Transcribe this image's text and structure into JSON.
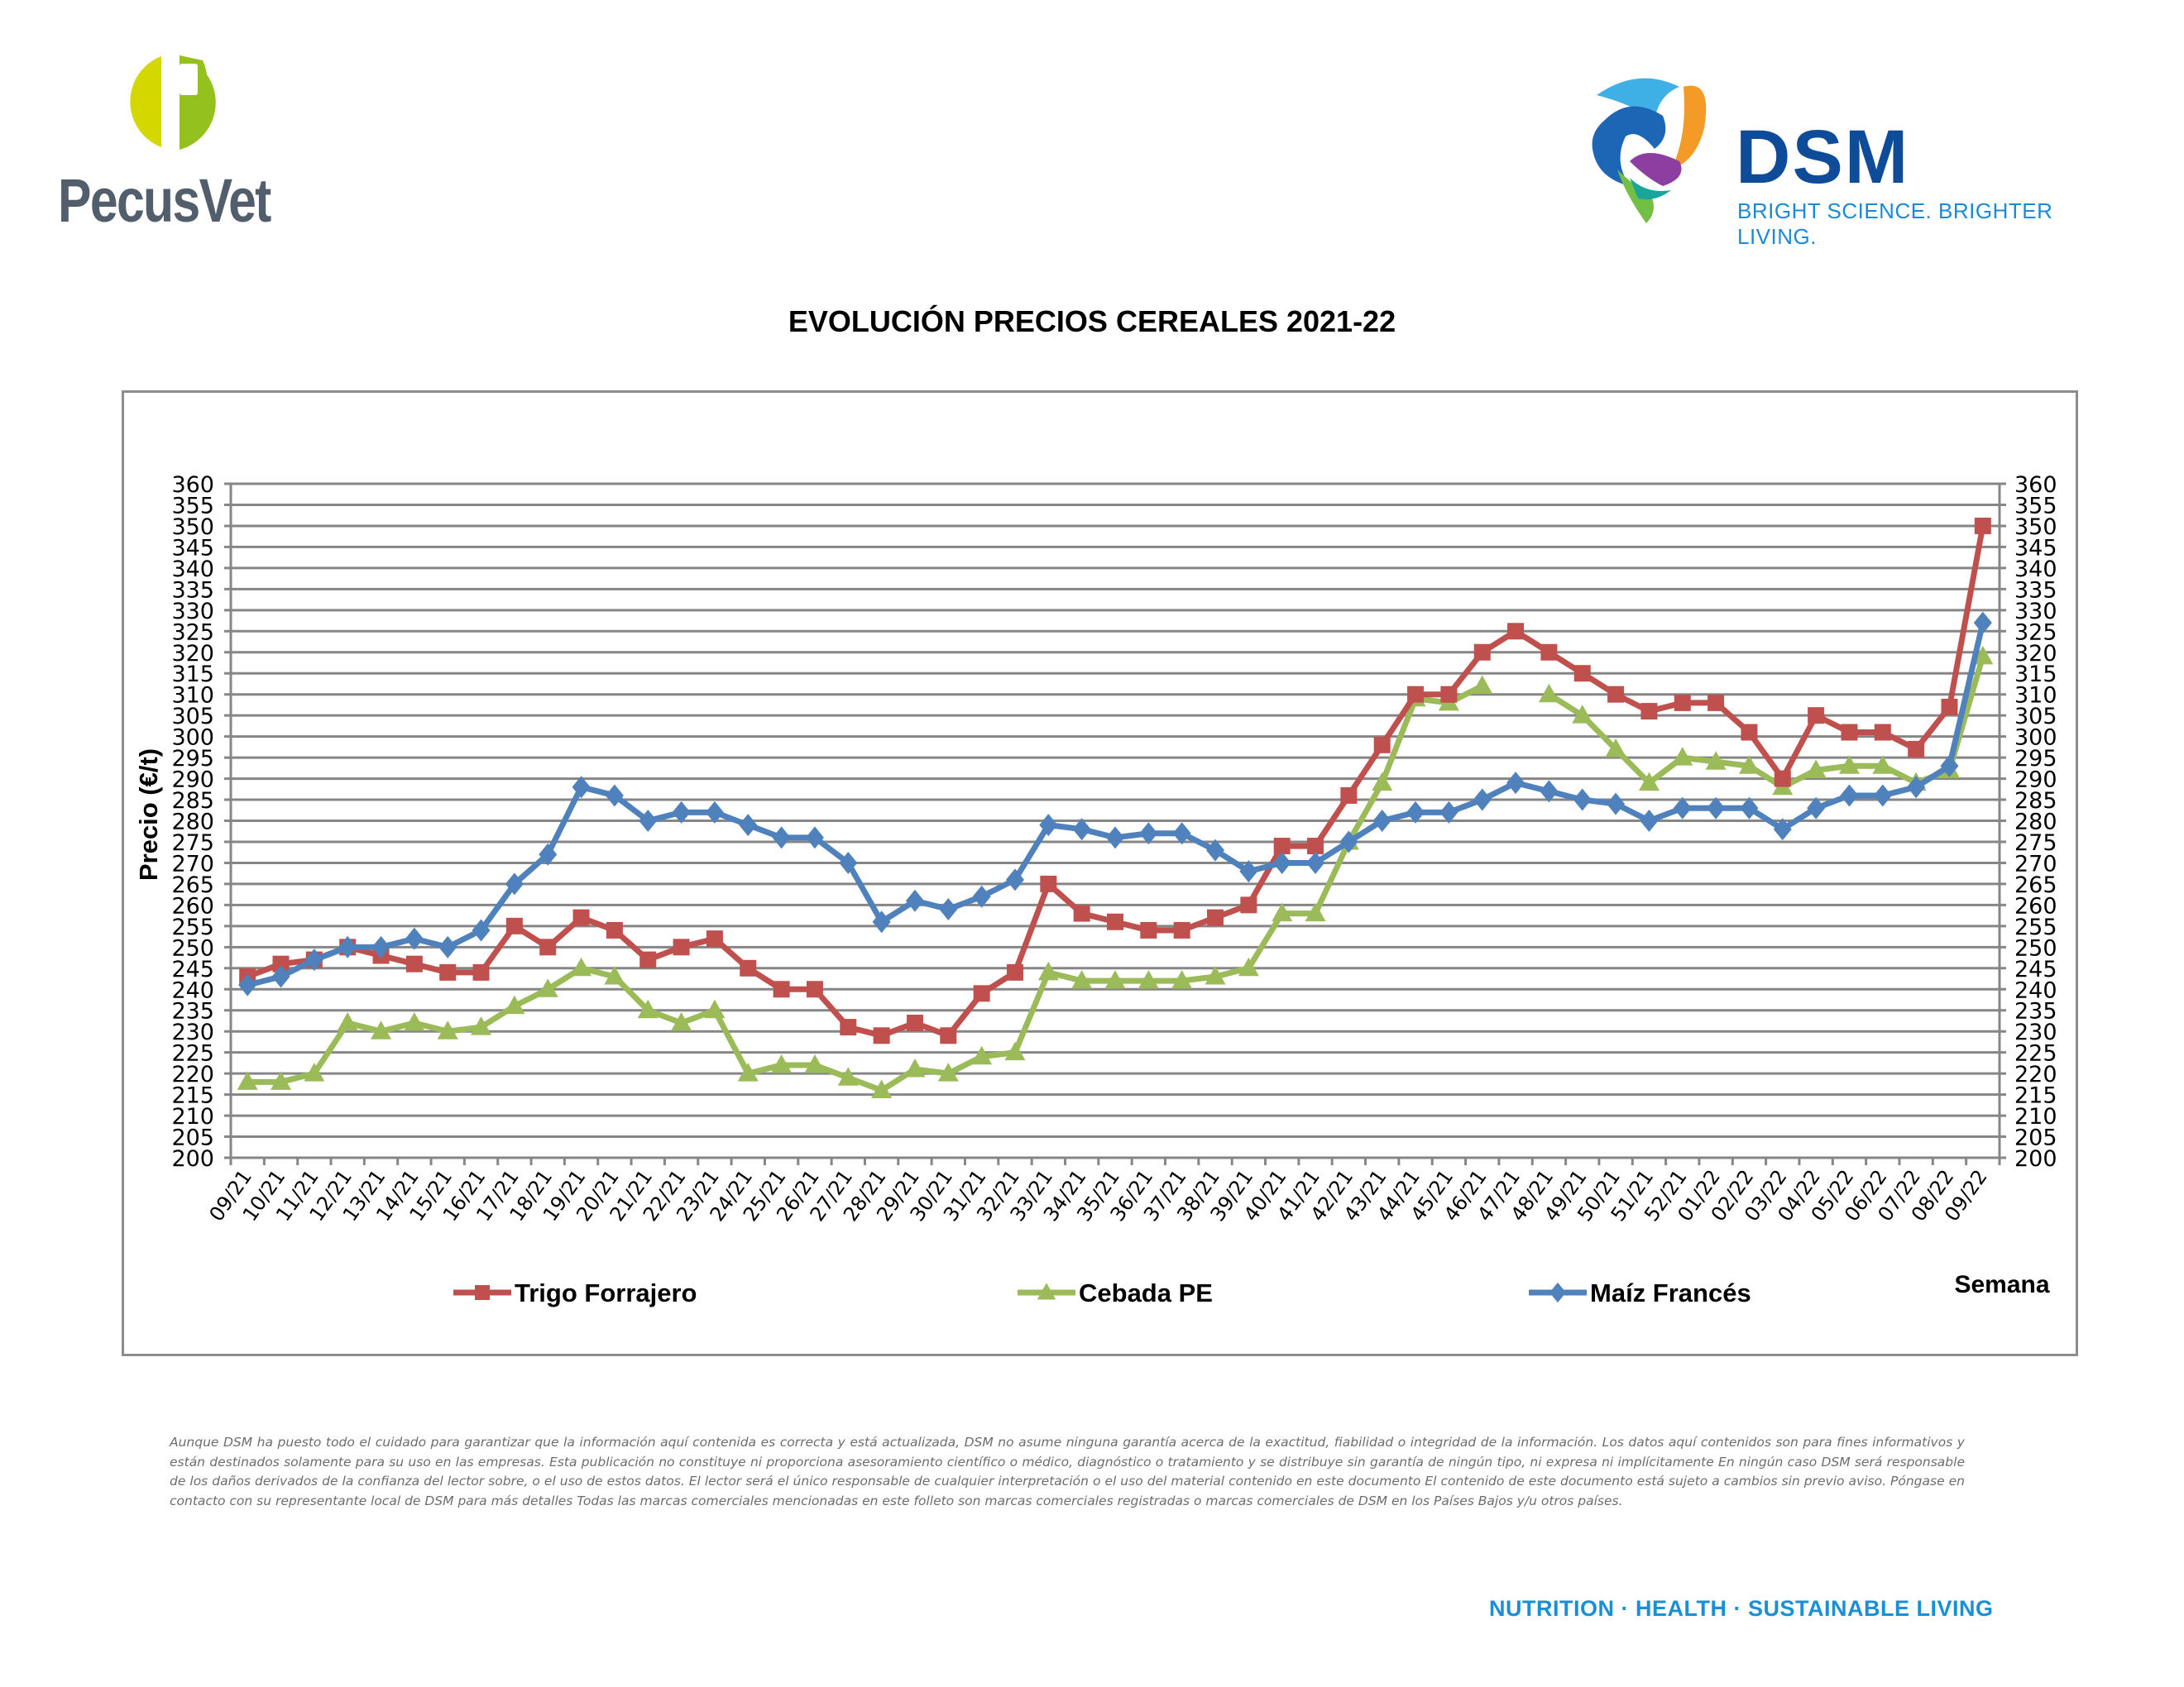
{
  "header": {
    "left_logo": {
      "name": "PecusVet",
      "letter": "P"
    },
    "right_logo": {
      "name": "DSM",
      "tagline": "BRIGHT SCIENCE. BRIGHTER LIVING."
    }
  },
  "chart_data": {
    "type": "line",
    "title": "EVOLUCIÓN PRECIOS CEREALES 2021-22",
    "xlabel": "Semana",
    "ylabel": "Precio (€/t)",
    "ylim": [
      200,
      360
    ],
    "ytick_step": 5,
    "grid": true,
    "legend_position": "bottom",
    "secondary_y_axis_mirrored": true,
    "categories": [
      "09/21",
      "10/21",
      "11/21",
      "12/21",
      "13/21",
      "14/21",
      "15/21",
      "16/21",
      "17/21",
      "18/21",
      "19/21",
      "20/21",
      "21/21",
      "22/21",
      "23/21",
      "24/21",
      "25/21",
      "26/21",
      "27/21",
      "28/21",
      "29/21",
      "30/21",
      "31/21",
      "32/21",
      "33/21",
      "34/21",
      "35/21",
      "36/21",
      "37/21",
      "38/21",
      "39/21",
      "40/21",
      "41/21",
      "42/21",
      "43/21",
      "44/21",
      "45/21",
      "46/21",
      "47/21",
      "48/21",
      "49/21",
      "50/21",
      "51/21",
      "52/21",
      "01/22",
      "02/22",
      "03/22",
      "04/22",
      "05/22",
      "06/22",
      "07/22",
      "08/22",
      "09/22"
    ],
    "series": [
      {
        "name": "Trigo Forrajero",
        "color": "#c0504d",
        "marker": "square",
        "values": [
          243,
          246,
          247,
          250,
          248,
          246,
          244,
          244,
          255,
          250,
          257,
          254,
          247,
          250,
          252,
          245,
          240,
          240,
          231,
          229,
          232,
          229,
          239,
          244,
          265,
          258,
          256,
          254,
          254,
          257,
          260,
          274,
          274,
          286,
          298,
          310,
          310,
          320,
          325,
          320,
          315,
          310,
          306,
          308,
          308,
          301,
          290,
          305,
          301,
          301,
          297,
          307,
          350
        ]
      },
      {
        "name": "Cebada PE",
        "color": "#9bbb59",
        "marker": "triangle",
        "values": [
          218,
          218,
          220,
          232,
          230,
          232,
          230,
          231,
          236,
          240,
          245,
          243,
          235,
          232,
          235,
          220,
          222,
          222,
          219,
          216,
          221,
          220,
          224,
          225,
          244,
          242,
          242,
          242,
          242,
          243,
          245,
          258,
          258,
          275,
          289,
          309,
          308,
          312,
          null,
          310,
          305,
          297,
          289,
          295,
          294,
          293,
          288,
          292,
          293,
          293,
          289,
          292,
          319
        ]
      },
      {
        "name": "Maíz Francés",
        "color": "#4f81bd",
        "marker": "diamond",
        "values": [
          241,
          243,
          247,
          250,
          250,
          252,
          250,
          254,
          265,
          272,
          288,
          286,
          280,
          282,
          282,
          279,
          276,
          276,
          270,
          256,
          261,
          259,
          262,
          266,
          279,
          278,
          276,
          277,
          277,
          273,
          268,
          270,
          270,
          275,
          280,
          282,
          282,
          285,
          289,
          287,
          285,
          284,
          280,
          283,
          283,
          283,
          278,
          283,
          286,
          286,
          288,
          293,
          327
        ]
      }
    ]
  },
  "disclaimer": "Aunque DSM ha puesto todo el cuidado para garantizar que la información aquí contenida es correcta y está actualizada, DSM no asume ninguna garantía acerca de la exactitud, fiabilidad o integridad de la información. Los datos aquí contenidos son para fines informativos y están destinados solamente para su uso en las empresas. Esta publicación no constituye ni proporciona asesoramiento científico o médico, diagnóstico o tratamiento y se distribuye sin garantía de ningún tipo, ni expresa ni implícitamente En ningún caso DSM será responsable de los daños derivados de la confianza del lector sobre, o el uso de estos datos. El lector será el único responsable de cualquier interpretación o el uso del material contenido en este documento El contenido de este documento está sujeto a cambios sin previo aviso. Póngase en contacto con su representante local de DSM para más detalles Todas las marcas comerciales mencionadas en este folleto son marcas comerciales registradas o marcas comerciales de DSM en los Países Bajos y/u otros países.",
  "footer": {
    "tagline": "NUTRITION · HEALTH · SUSTAINABLE LIVING"
  }
}
